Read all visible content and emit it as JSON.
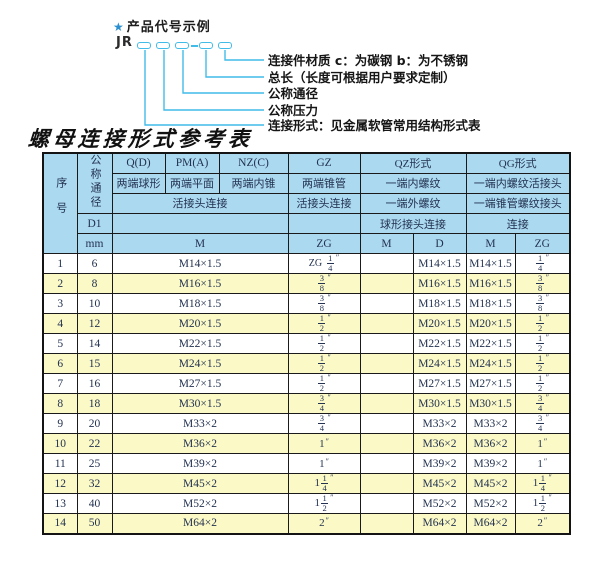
{
  "diagram": {
    "star_icon": "★",
    "title": "产品代号示例",
    "code_prefix": "JR",
    "labels": [
      "连接件材质  c：为碳钢  b：为不锈钢",
      "总长（长度可根据用户要求定制）",
      "公称通径",
      "公称压力",
      "连接形式：见金属软管常用结构形式表"
    ]
  },
  "table_title": "螺母连接形式参考表",
  "table": {
    "inch_mark": "″",
    "header": {
      "seq": "序号",
      "nominal_diameter": "公称通径",
      "d1": "D1",
      "mm": "mm",
      "q": "Q(D)",
      "pm": "PM(A)",
      "nz": "NZ(C)",
      "gz": "GZ",
      "qz": "QZ形式",
      "qg": "QG形式",
      "q_desc": "两端球形",
      "pm_desc": "两端平面",
      "nz_desc": "两端内锥",
      "gz_desc": "两端锥管",
      "qz_desc1": "一端内螺纹",
      "qg_desc1": "一端内螺纹活接头",
      "left_conn": "活接头连接",
      "gz_conn": "活接头连接",
      "qz_desc2": "一端外螺纹",
      "qg_desc2": "一端锥管螺纹接头",
      "qz_conn": "球形接头连接",
      "qg_conn": "连接",
      "m1": "M",
      "zg1": "ZG",
      "m2": "M",
      "d": "D",
      "m3": "M",
      "zg2": "ZG"
    },
    "rows": [
      {
        "no": "1",
        "mm": "6",
        "m": "M14×1.5",
        "zg_left": {
          "pre": "ZG",
          "num": "1",
          "den": "4"
        },
        "qz_m": "",
        "qz_d": "M14×1.5",
        "qg_m": "M14×1.5",
        "zg_right": {
          "num": "1",
          "den": "4"
        }
      },
      {
        "no": "2",
        "mm": "8",
        "m": "M16×1.5",
        "zg_left": {
          "num": "3",
          "den": "8"
        },
        "qz_m": "",
        "qz_d": "M16×1.5",
        "qg_m": "M16×1.5",
        "zg_right": {
          "num": "3",
          "den": "8"
        }
      },
      {
        "no": "3",
        "mm": "10",
        "m": "M18×1.5",
        "zg_left": {
          "num": "3",
          "den": "8"
        },
        "qz_m": "",
        "qz_d": "M18×1.5",
        "qg_m": "M18×1.5",
        "zg_right": {
          "num": "3",
          "den": "8"
        }
      },
      {
        "no": "4",
        "mm": "12",
        "m": "M20×1.5",
        "zg_left": {
          "num": "1",
          "den": "2"
        },
        "qz_m": "",
        "qz_d": "M20×1.5",
        "qg_m": "M20×1.5",
        "zg_right": {
          "num": "1",
          "den": "2"
        }
      },
      {
        "no": "5",
        "mm": "14",
        "m": "M22×1.5",
        "zg_left": {
          "num": "1",
          "den": "2"
        },
        "qz_m": "",
        "qz_d": "M22×1.5",
        "qg_m": "M22×1.5",
        "zg_right": {
          "num": "1",
          "den": "2"
        }
      },
      {
        "no": "6",
        "mm": "15",
        "m": "M24×1.5",
        "zg_left": {
          "num": "1",
          "den": "2"
        },
        "qz_m": "",
        "qz_d": "M24×1.5",
        "qg_m": "M24×1.5",
        "zg_right": {
          "num": "1",
          "den": "2"
        }
      },
      {
        "no": "7",
        "mm": "16",
        "m": "M27×1.5",
        "zg_left": {
          "num": "1",
          "den": "2"
        },
        "qz_m": "",
        "qz_d": "M27×1.5",
        "qg_m": "M27×1.5",
        "zg_right": {
          "num": "1",
          "den": "2"
        }
      },
      {
        "no": "8",
        "mm": "18",
        "m": "M30×1.5",
        "zg_left": {
          "num": "3",
          "den": "4"
        },
        "qz_m": "",
        "qz_d": "M30×1.5",
        "qg_m": "M30×1.5",
        "zg_right": {
          "num": "3",
          "den": "4"
        }
      },
      {
        "no": "9",
        "mm": "20",
        "m": "M33×2",
        "zg_left": {
          "num": "3",
          "den": "4"
        },
        "qz_m": "",
        "qz_d": "M33×2",
        "qg_m": "M33×2",
        "zg_right": {
          "num": "3",
          "den": "4"
        }
      },
      {
        "no": "10",
        "mm": "22",
        "m": "M36×2",
        "zg_left": {
          "whole": "1"
        },
        "qz_m": "",
        "qz_d": "M36×2",
        "qg_m": "M36×2",
        "zg_right": {
          "whole": "1"
        }
      },
      {
        "no": "11",
        "mm": "25",
        "m": "M39×2",
        "zg_left": {
          "whole": "1"
        },
        "qz_m": "",
        "qz_d": "M39×2",
        "qg_m": "M39×2",
        "zg_right": {
          "whole": "1"
        }
      },
      {
        "no": "12",
        "mm": "32",
        "m": "M45×2",
        "zg_left": {
          "whole": "1",
          "num": "1",
          "den": "4"
        },
        "qz_m": "",
        "qz_d": "M45×2",
        "qg_m": "M45×2",
        "zg_right": {
          "whole": "1",
          "num": "1",
          "den": "4"
        }
      },
      {
        "no": "13",
        "mm": "40",
        "m": "M52×2",
        "zg_left": {
          "whole": "1",
          "num": "1",
          "den": "2"
        },
        "qz_m": "",
        "qz_d": "M52×2",
        "qg_m": "M52×2",
        "zg_right": {
          "whole": "1",
          "num": "1",
          "den": "2"
        }
      },
      {
        "no": "14",
        "mm": "50",
        "m": "M64×2",
        "zg_left": {
          "whole": "2"
        },
        "qz_m": "",
        "qz_d": "M64×2",
        "qg_m": "M64×2",
        "zg_right": {
          "whole": "2"
        }
      }
    ]
  },
  "colors": {
    "header_bg": "#abd9f0",
    "row_alt_bg": "#fbf9c6",
    "accent_line": "#41bce8",
    "star": "#2b8fd0",
    "text": "#233250"
  }
}
